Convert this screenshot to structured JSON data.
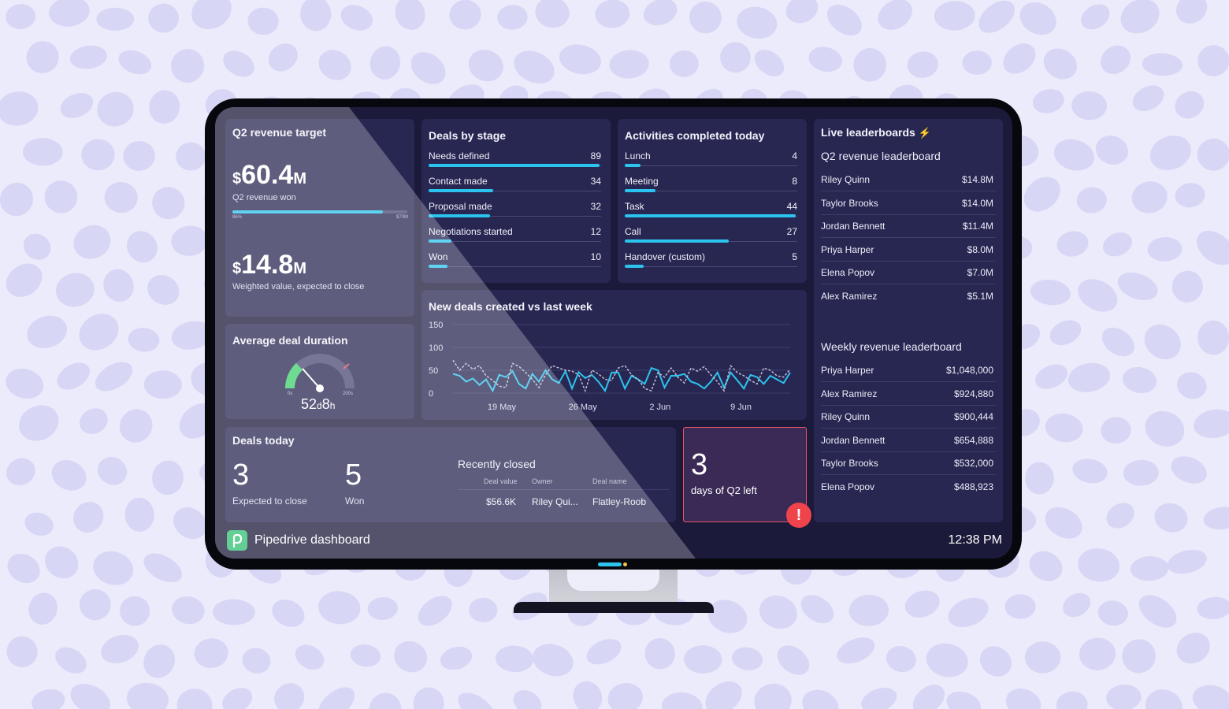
{
  "revenue_target": {
    "title": "Q2 revenue target",
    "won_currency": "$",
    "won_value": "60.4",
    "won_suffix": "M",
    "won_label": "Q2 revenue won",
    "progress_start_label": "86%",
    "progress_end_label": "$70M",
    "progress_fraction": 0.86,
    "weighted_currency": "$",
    "weighted_value": "14.8",
    "weighted_suffix": "M",
    "weighted_label": "Weighted value, expected to close"
  },
  "avg_duration": {
    "title": "Average deal duration",
    "min_label": "0s",
    "max_label": "200s",
    "days": "52",
    "days_unit": "d",
    "hours": "8",
    "hours_unit": "h",
    "gauge_fraction": 0.26
  },
  "deals_by_stage": {
    "title": "Deals by stage",
    "rows": [
      {
        "label": "Needs defined",
        "value": "89",
        "fraction": 1.0
      },
      {
        "label": "Contact made",
        "value": "34",
        "fraction": 0.38
      },
      {
        "label": "Proposal made",
        "value": "32",
        "fraction": 0.36
      },
      {
        "label": "Negotiations started",
        "value": "12",
        "fraction": 0.135
      },
      {
        "label": "Won",
        "value": "10",
        "fraction": 0.112
      }
    ]
  },
  "activities": {
    "title": "Activities completed today",
    "rows": [
      {
        "label": "Lunch",
        "value": "4",
        "fraction": 0.09
      },
      {
        "label": "Meeting",
        "value": "8",
        "fraction": 0.18
      },
      {
        "label": "Task",
        "value": "44",
        "fraction": 1.0
      },
      {
        "label": "Call",
        "value": "27",
        "fraction": 0.61
      },
      {
        "label": "Handover (custom)",
        "value": "5",
        "fraction": 0.11
      }
    ]
  },
  "new_deals_chart": {
    "title": "New deals created vs last week",
    "chart_data": {
      "type": "line",
      "y_ticks": [
        "150",
        "100",
        "50",
        "0"
      ],
      "ylim": [
        0,
        150
      ],
      "x_ticks": [
        "19 May",
        "26 May",
        "2 Jun",
        "9 Jun"
      ],
      "series": [
        {
          "values": [
            42,
            38,
            25,
            32,
            18,
            30,
            5,
            40,
            35,
            48,
            20,
            10,
            42,
            25,
            50,
            30,
            22,
            48,
            10,
            46,
            33,
            40,
            25,
            5,
            45,
            45,
            10,
            38,
            30,
            20,
            55,
            50,
            12,
            38,
            38,
            42,
            25,
            20,
            10,
            25,
            45,
            12,
            45,
            28,
            10,
            40,
            35,
            20,
            38,
            30,
            22,
            45
          ]
        },
        {
          "values": [
            72,
            50,
            65,
            52,
            60,
            38,
            28,
            15,
            12,
            65,
            58,
            45,
            30,
            12,
            40,
            60,
            55,
            50,
            48,
            40,
            5,
            50,
            42,
            30,
            28,
            55,
            60,
            40,
            30,
            10,
            5,
            45,
            35,
            55,
            35,
            22,
            55,
            48,
            58,
            40,
            25,
            5,
            60,
            45,
            38,
            28,
            20,
            55,
            50,
            38,
            35,
            52
          ]
        }
      ]
    }
  },
  "leaderboards": {
    "title": "Live leaderboards",
    "q2_title": "Q2 revenue leaderboard",
    "q2_rows": [
      {
        "name": "Riley Quinn",
        "value": "$14.8M"
      },
      {
        "name": "Taylor Brooks",
        "value": "$14.0M"
      },
      {
        "name": "Jordan Bennett",
        "value": "$11.4M"
      },
      {
        "name": "Priya Harper",
        "value": "$8.0M"
      },
      {
        "name": "Elena Popov",
        "value": "$7.0M"
      },
      {
        "name": "Alex Ramirez",
        "value": "$5.1M"
      }
    ],
    "weekly_title": "Weekly revenue leaderboard",
    "weekly_rows": [
      {
        "name": "Priya Harper",
        "value": "$1,048,000"
      },
      {
        "name": "Alex Ramirez",
        "value": "$924,880"
      },
      {
        "name": "Riley Quinn",
        "value": "$900,444"
      },
      {
        "name": "Jordan Bennett",
        "value": "$654,888"
      },
      {
        "name": "Taylor Brooks",
        "value": "$532,000"
      },
      {
        "name": "Elena Popov",
        "value": "$488,923"
      }
    ]
  },
  "deals_today": {
    "title": "Deals today",
    "expected_value": "3",
    "expected_label": "Expected to close",
    "won_value": "5",
    "won_label": "Won",
    "recent_title": "Recently closed",
    "col_value": "Deal value",
    "col_owner": "Owner",
    "col_name": "Deal name",
    "row_value": "$56.6K",
    "row_owner": "Riley Qui...",
    "row_name": "Flatley-Roob"
  },
  "q2_left": {
    "value": "3",
    "label": "days of Q2 left",
    "alert": "!"
  },
  "footer": {
    "title": "Pipedrive dashboard",
    "time": "12:38 PM"
  },
  "colors": {
    "accent": "#2bc4ef",
    "card": "#282752",
    "screen": "#1b1a3a",
    "alert": "#f0444d",
    "gauge_green": "#3ecf6b",
    "brand_green": "#2fbf71"
  }
}
